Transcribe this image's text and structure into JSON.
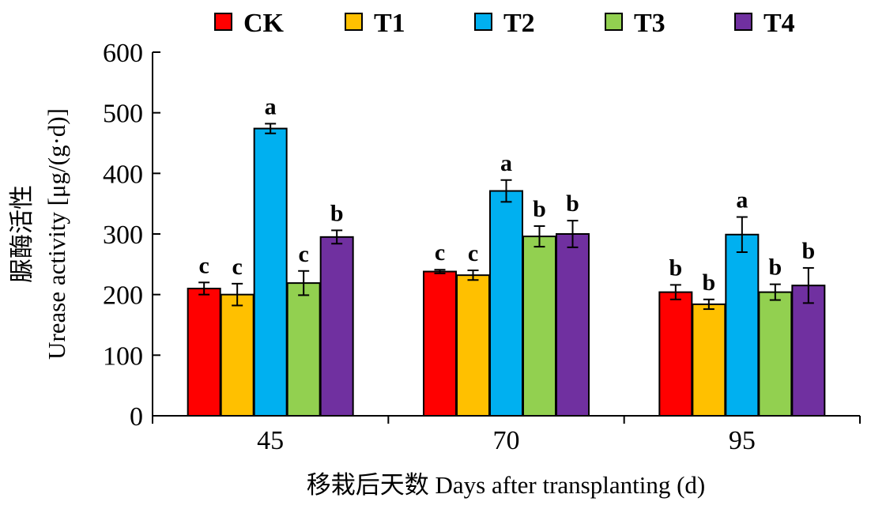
{
  "chart_data": {
    "type": "bar",
    "categories": [
      "45",
      "70",
      "95"
    ],
    "series": [
      {
        "name": "CK",
        "color": "#ff0000",
        "values": [
          210,
          238,
          204
        ],
        "errors": [
          10,
          3,
          12
        ],
        "letters": [
          "c",
          "c",
          "b"
        ]
      },
      {
        "name": "T1",
        "color": "#ffc000",
        "values": [
          200,
          232,
          184
        ],
        "errors": [
          18,
          8,
          8
        ],
        "letters": [
          "c",
          "c",
          "b"
        ]
      },
      {
        "name": "T2",
        "color": "#00b0f0",
        "values": [
          474,
          371,
          299
        ],
        "errors": [
          8,
          18,
          29
        ],
        "letters": [
          "a",
          "a",
          "a"
        ]
      },
      {
        "name": "T3",
        "color": "#92d050",
        "values": [
          219,
          296,
          204
        ],
        "errors": [
          20,
          17,
          13
        ],
        "letters": [
          "c",
          "b",
          "b"
        ]
      },
      {
        "name": "T4",
        "color": "#7030a0",
        "values": [
          295,
          300,
          215
        ],
        "errors": [
          11,
          22,
          29
        ],
        "letters": [
          "b",
          "b",
          "b"
        ]
      }
    ],
    "ylim": [
      0,
      600
    ],
    "yticks": [
      "0",
      "100",
      "200",
      "300",
      "400",
      "500",
      "600"
    ],
    "ylabel_cn": "脲酶活性",
    "ylabel": "Urease activity [μg/(g·d)]",
    "xlabel": "移栽后天数 Days after transplanting (d)",
    "legend_position": "top",
    "grid": false
  }
}
